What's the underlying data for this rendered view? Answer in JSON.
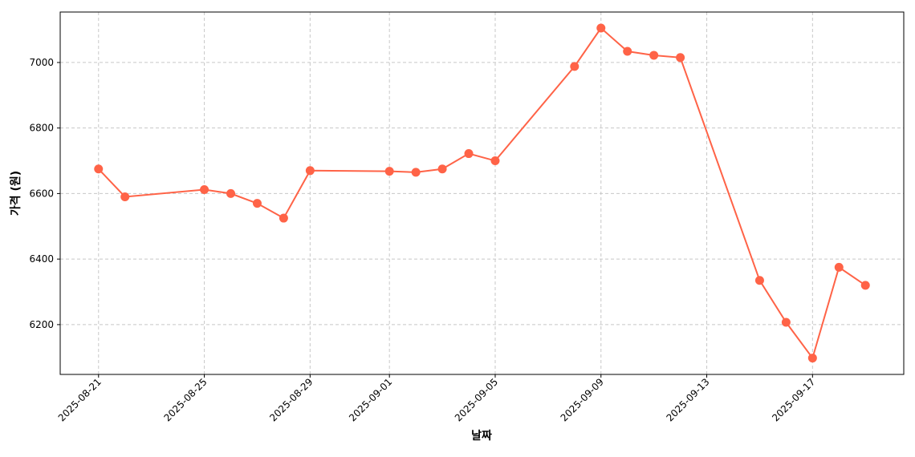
{
  "chart_data": {
    "type": "line",
    "x_label": "날짜",
    "y_label": "가격 (원)",
    "x": [
      "2025-08-21",
      "2025-08-22",
      "2025-08-25",
      "2025-08-26",
      "2025-08-27",
      "2025-08-28",
      "2025-08-29",
      "2025-09-01",
      "2025-09-02",
      "2025-09-03",
      "2025-09-04",
      "2025-09-05",
      "2025-09-08",
      "2025-09-09",
      "2025-09-10",
      "2025-09-11",
      "2025-09-12",
      "2025-09-15",
      "2025-09-16",
      "2025-09-17",
      "2025-09-18",
      "2025-09-19"
    ],
    "series": [
      {
        "name": "가격",
        "color": "#ff6347",
        "values": [
          6675,
          6590,
          6612,
          6600,
          6570,
          6525,
          6670,
          6668,
          6665,
          6675,
          6722,
          6700,
          6988,
          7105,
          7034,
          7022,
          7015,
          6335,
          6207,
          6098,
          6375,
          6320
        ]
      }
    ],
    "xlim": [
      "2025-08-19T13:12",
      "2025-09-20T10:48"
    ],
    "xticks": [
      "2025-08-21",
      "2025-08-25",
      "2025-08-29",
      "2025-09-01",
      "2025-09-05",
      "2025-09-09",
      "2025-09-13",
      "2025-09-17"
    ],
    "ylim": [
      6048,
      7154
    ],
    "yticks": [
      6200,
      6400,
      6600,
      6800,
      7000
    ],
    "grid": true
  }
}
